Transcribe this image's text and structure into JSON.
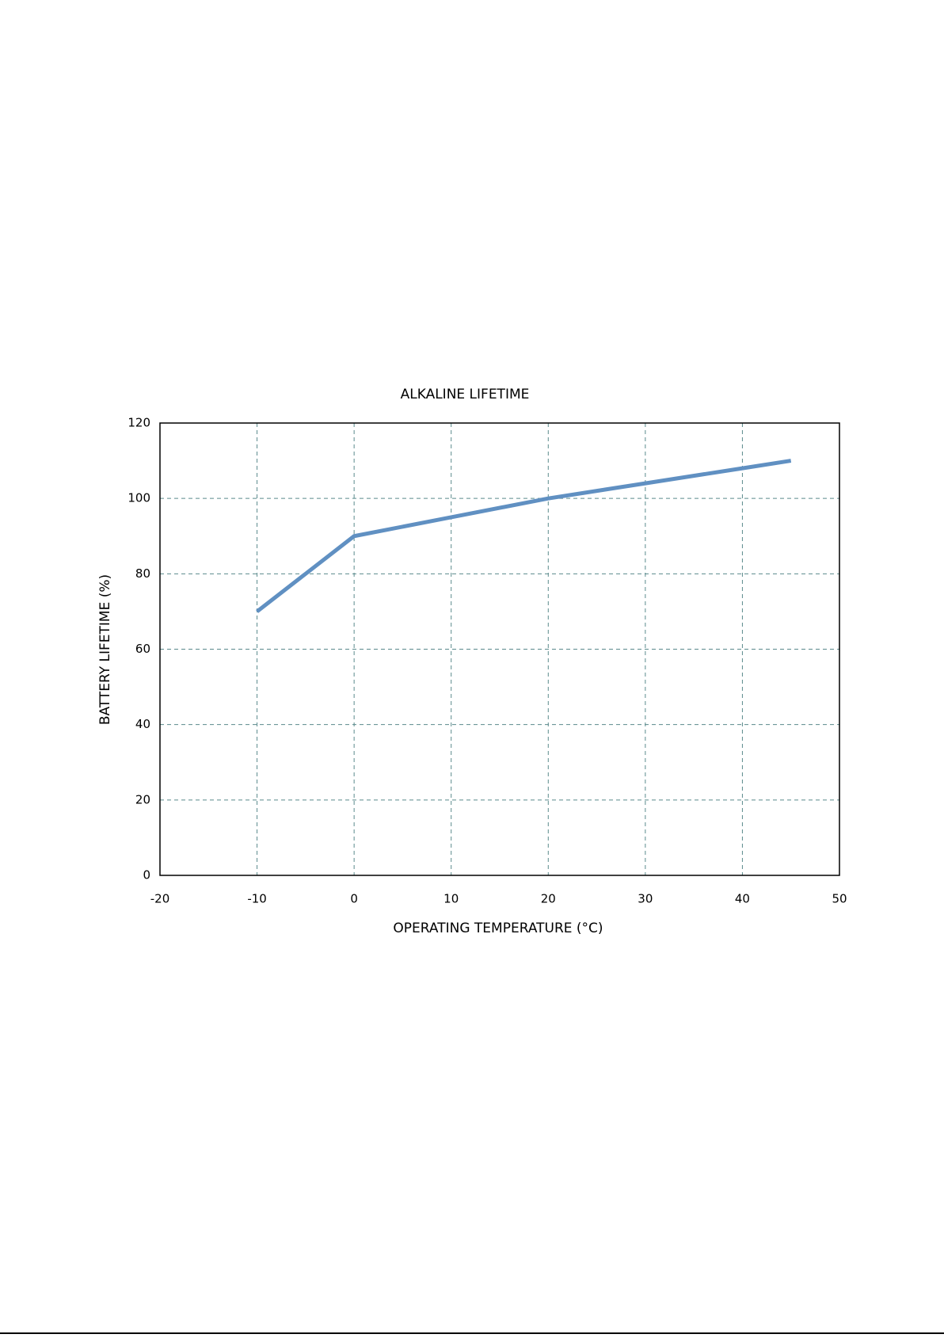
{
  "chart_data": {
    "type": "line",
    "title": "ALKALINE LIFETIME",
    "x_label": "OPERATING TEMPERATURE (°C)",
    "y_label": "BATTERY LIFETIME (%)",
    "x": [
      -10,
      0,
      10,
      20,
      30,
      40,
      45
    ],
    "series": [
      {
        "color": "#6090c2",
        "values": [
          70,
          90,
          95,
          100,
          104,
          108,
          110
        ]
      }
    ],
    "xlim": [
      -20,
      50
    ],
    "xticks": [
      -20,
      -10,
      0,
      10,
      20,
      30,
      40,
      50
    ],
    "ylim": [
      0,
      120
    ],
    "yticks": [
      0,
      20,
      40,
      60,
      80,
      100,
      120
    ],
    "grid": true
  }
}
